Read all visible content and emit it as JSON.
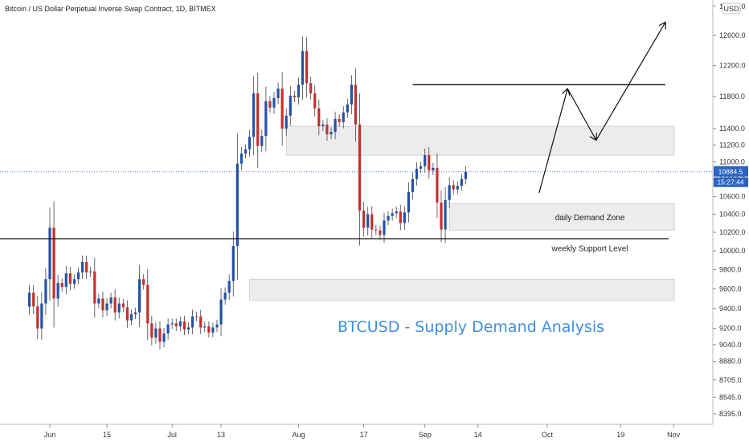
{
  "chart_data": {
    "type": "candlestick",
    "title": "Bitcoin / US Dollar Perpetual Inverse Swap Contract, 1D, BITMEX",
    "headline": "BTCUSD - Supply Demand Analysis",
    "currency": "USD",
    "y_axis": {
      "ticks": [
        8395.0,
        8545.0,
        8705.0,
        8880.0,
        9040.0,
        9200.0,
        9400.0,
        9600.0,
        9800.0,
        10000.0,
        10200.0,
        10400.0,
        10600.0,
        10800.0,
        11000.0,
        11200.0,
        11400.0,
        11800.0,
        12200.0,
        12600.0,
        13000.0
      ],
      "tick_labels": [
        "8395.0",
        "8545.0",
        "8705.0",
        "8880.0",
        "9040.0",
        "9200.0",
        "9400.0",
        "9600.0",
        "9800.0",
        "10000.0",
        "10200.0",
        "10400.0",
        "10600.0",
        "10800.0",
        "11000.0",
        "11200.0",
        "11400.0",
        "11800.0",
        "12200.0",
        "12600.0",
        "13000.0"
      ],
      "scale": "log"
    },
    "x_axis": {
      "tick_labels": [
        "Jun",
        "15",
        "Jul",
        "13",
        "Aug",
        "17",
        "Sep",
        "14",
        "Oct",
        "19",
        "Nov"
      ],
      "tick_dates": [
        "2020-06-01",
        "2020-06-15",
        "2020-07-01",
        "2020-07-13",
        "2020-08-01",
        "2020-08-17",
        "2020-09-01",
        "2020-09-14",
        "2020-10-01",
        "2020-10-19",
        "2020-11-01"
      ]
    },
    "current_price": {
      "value": 10884.5,
      "label": "10884.5",
      "countdown": "15:27:44"
    },
    "candles": {
      "start_date": "2020-05-27",
      "close": [
        9560,
        9420,
        9200,
        9450,
        9700,
        10250,
        9500,
        9660,
        9620,
        9760,
        9650,
        9700,
        9770,
        9880,
        9770,
        9780,
        9450,
        9500,
        9380,
        9450,
        9510,
        9360,
        9450,
        9410,
        9280,
        9340,
        9360,
        9700,
        9640,
        9250,
        9110,
        9200,
        9070,
        9150,
        9240,
        9250,
        9220,
        9270,
        9190,
        9210,
        9320,
        9320,
        9210,
        9220,
        9160,
        9210,
        9240,
        9490,
        9560,
        9680,
        10050,
        10980,
        11100,
        11150,
        11300,
        11840,
        11190,
        11310,
        11740,
        11660,
        11780,
        11900,
        11400,
        11560,
        11810,
        11790,
        11950,
        12390,
        11970,
        11840,
        11650,
        11430,
        11450,
        11330,
        11360,
        11520,
        11480,
        11600,
        11700,
        11950,
        11450,
        10440,
        10250,
        10400,
        10230,
        10220,
        10170,
        10330,
        10380,
        10410,
        10430,
        10300,
        10420,
        10650,
        10800,
        10920,
        10950,
        11080,
        10900,
        10930,
        10530,
        10230,
        10560,
        10730,
        10680,
        10720,
        10800,
        10884.5
      ]
    },
    "levels": [
      {
        "price": 11950
      },
      {
        "price": 10130
      }
    ],
    "zones": [
      {
        "label": "",
        "from_date": "2020-07-29",
        "to_date": "2020-11-01",
        "low": 11080,
        "high": 11430
      },
      {
        "label": "daily Demand Zone",
        "from_date": "2020-09-07",
        "to_date": "2020-11-01",
        "low": 10220,
        "high": 10520
      },
      {
        "label": "",
        "from_date": "2020-07-20",
        "to_date": "2020-11-01",
        "low": 9480,
        "high": 9700
      }
    ],
    "level_labels": [
      {
        "label": "weekly Support Level",
        "price": 10020,
        "date": "2020-10-17"
      }
    ],
    "projection": [
      {
        "date": "2020-09-29",
        "price": 10640
      },
      {
        "date": "2020-10-06",
        "price": 11900
      },
      {
        "date": "2020-10-13",
        "price": 11260
      },
      {
        "date": "2020-10-30",
        "price": 12780
      }
    ],
    "colors": {
      "up": "#2451a8",
      "down": "#c4302b",
      "wick": "#444444",
      "zone": "#e6e6e6",
      "zone_border": "#c8c8c8",
      "price_tag": "#2a63c4",
      "headline": "#3d8fe0"
    }
  }
}
